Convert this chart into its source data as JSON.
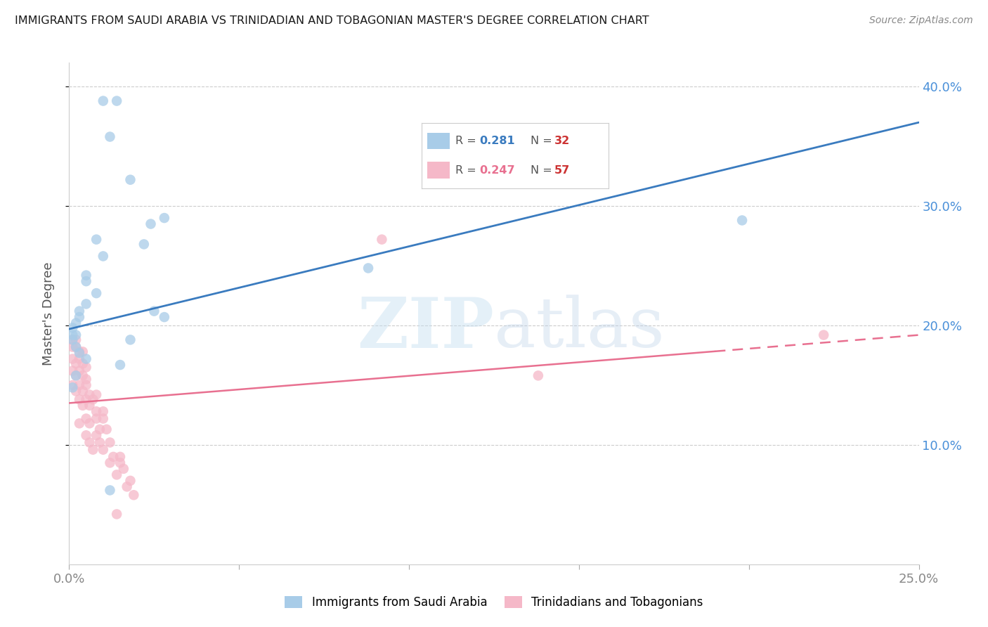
{
  "title": "IMMIGRANTS FROM SAUDI ARABIA VS TRINIDADIAN AND TOBAGONIAN MASTER'S DEGREE CORRELATION CHART",
  "source": "Source: ZipAtlas.com",
  "ylabel": "Master's Degree",
  "xlim": [
    0.0,
    0.25
  ],
  "ylim": [
    0.0,
    0.42
  ],
  "yticks": [
    0.1,
    0.2,
    0.3,
    0.4
  ],
  "ytick_labels": [
    "10.0%",
    "20.0%",
    "30.0%",
    "40.0%"
  ],
  "xtick_vals": [
    0.0,
    0.25
  ],
  "xtick_labels": [
    "0.0%",
    "25.0%"
  ],
  "color_blue": "#a8cce8",
  "color_pink": "#f5b8c8",
  "line_blue": "#3a7bbf",
  "line_pink": "#e87090",
  "blue_points": [
    [
      0.01,
      0.388
    ],
    [
      0.014,
      0.388
    ],
    [
      0.012,
      0.358
    ],
    [
      0.018,
      0.322
    ],
    [
      0.028,
      0.29
    ],
    [
      0.024,
      0.285
    ],
    [
      0.022,
      0.268
    ],
    [
      0.008,
      0.272
    ],
    [
      0.01,
      0.258
    ],
    [
      0.005,
      0.242
    ],
    [
      0.005,
      0.237
    ],
    [
      0.008,
      0.227
    ],
    [
      0.005,
      0.218
    ],
    [
      0.003,
      0.212
    ],
    [
      0.025,
      0.212
    ],
    [
      0.028,
      0.207
    ],
    [
      0.003,
      0.207
    ],
    [
      0.002,
      0.202
    ],
    [
      0.001,
      0.198
    ],
    [
      0.002,
      0.192
    ],
    [
      0.001,
      0.192
    ],
    [
      0.001,
      0.188
    ],
    [
      0.018,
      0.188
    ],
    [
      0.002,
      0.182
    ],
    [
      0.003,
      0.177
    ],
    [
      0.005,
      0.172
    ],
    [
      0.015,
      0.167
    ],
    [
      0.002,
      0.158
    ],
    [
      0.001,
      0.148
    ],
    [
      0.012,
      0.062
    ],
    [
      0.198,
      0.288
    ],
    [
      0.088,
      0.248
    ]
  ],
  "pink_points": [
    [
      0.001,
      0.188
    ],
    [
      0.002,
      0.188
    ],
    [
      0.001,
      0.182
    ],
    [
      0.002,
      0.182
    ],
    [
      0.003,
      0.178
    ],
    [
      0.004,
      0.178
    ],
    [
      0.001,
      0.172
    ],
    [
      0.003,
      0.172
    ],
    [
      0.002,
      0.168
    ],
    [
      0.004,
      0.168
    ],
    [
      0.005,
      0.165
    ],
    [
      0.001,
      0.162
    ],
    [
      0.003,
      0.162
    ],
    [
      0.002,
      0.158
    ],
    [
      0.004,
      0.158
    ],
    [
      0.005,
      0.155
    ],
    [
      0.001,
      0.15
    ],
    [
      0.003,
      0.15
    ],
    [
      0.005,
      0.15
    ],
    [
      0.002,
      0.145
    ],
    [
      0.004,
      0.145
    ],
    [
      0.006,
      0.142
    ],
    [
      0.008,
      0.142
    ],
    [
      0.003,
      0.138
    ],
    [
      0.005,
      0.138
    ],
    [
      0.007,
      0.138
    ],
    [
      0.004,
      0.133
    ],
    [
      0.006,
      0.133
    ],
    [
      0.008,
      0.128
    ],
    [
      0.01,
      0.128
    ],
    [
      0.005,
      0.122
    ],
    [
      0.008,
      0.122
    ],
    [
      0.01,
      0.122
    ],
    [
      0.003,
      0.118
    ],
    [
      0.006,
      0.118
    ],
    [
      0.009,
      0.113
    ],
    [
      0.011,
      0.113
    ],
    [
      0.005,
      0.108
    ],
    [
      0.008,
      0.108
    ],
    [
      0.006,
      0.102
    ],
    [
      0.009,
      0.102
    ],
    [
      0.012,
      0.102
    ],
    [
      0.007,
      0.096
    ],
    [
      0.01,
      0.096
    ],
    [
      0.013,
      0.09
    ],
    [
      0.015,
      0.09
    ],
    [
      0.012,
      0.085
    ],
    [
      0.015,
      0.085
    ],
    [
      0.016,
      0.08
    ],
    [
      0.014,
      0.075
    ],
    [
      0.018,
      0.07
    ],
    [
      0.017,
      0.065
    ],
    [
      0.019,
      0.058
    ],
    [
      0.014,
      0.042
    ],
    [
      0.092,
      0.272
    ],
    [
      0.138,
      0.158
    ],
    [
      0.222,
      0.192
    ]
  ],
  "blue_line": {
    "x0": 0.0,
    "y0": 0.197,
    "x1": 0.25,
    "y1": 0.37
  },
  "pink_line": {
    "x0": 0.0,
    "y0": 0.135,
    "x1": 0.25,
    "y1": 0.192
  }
}
